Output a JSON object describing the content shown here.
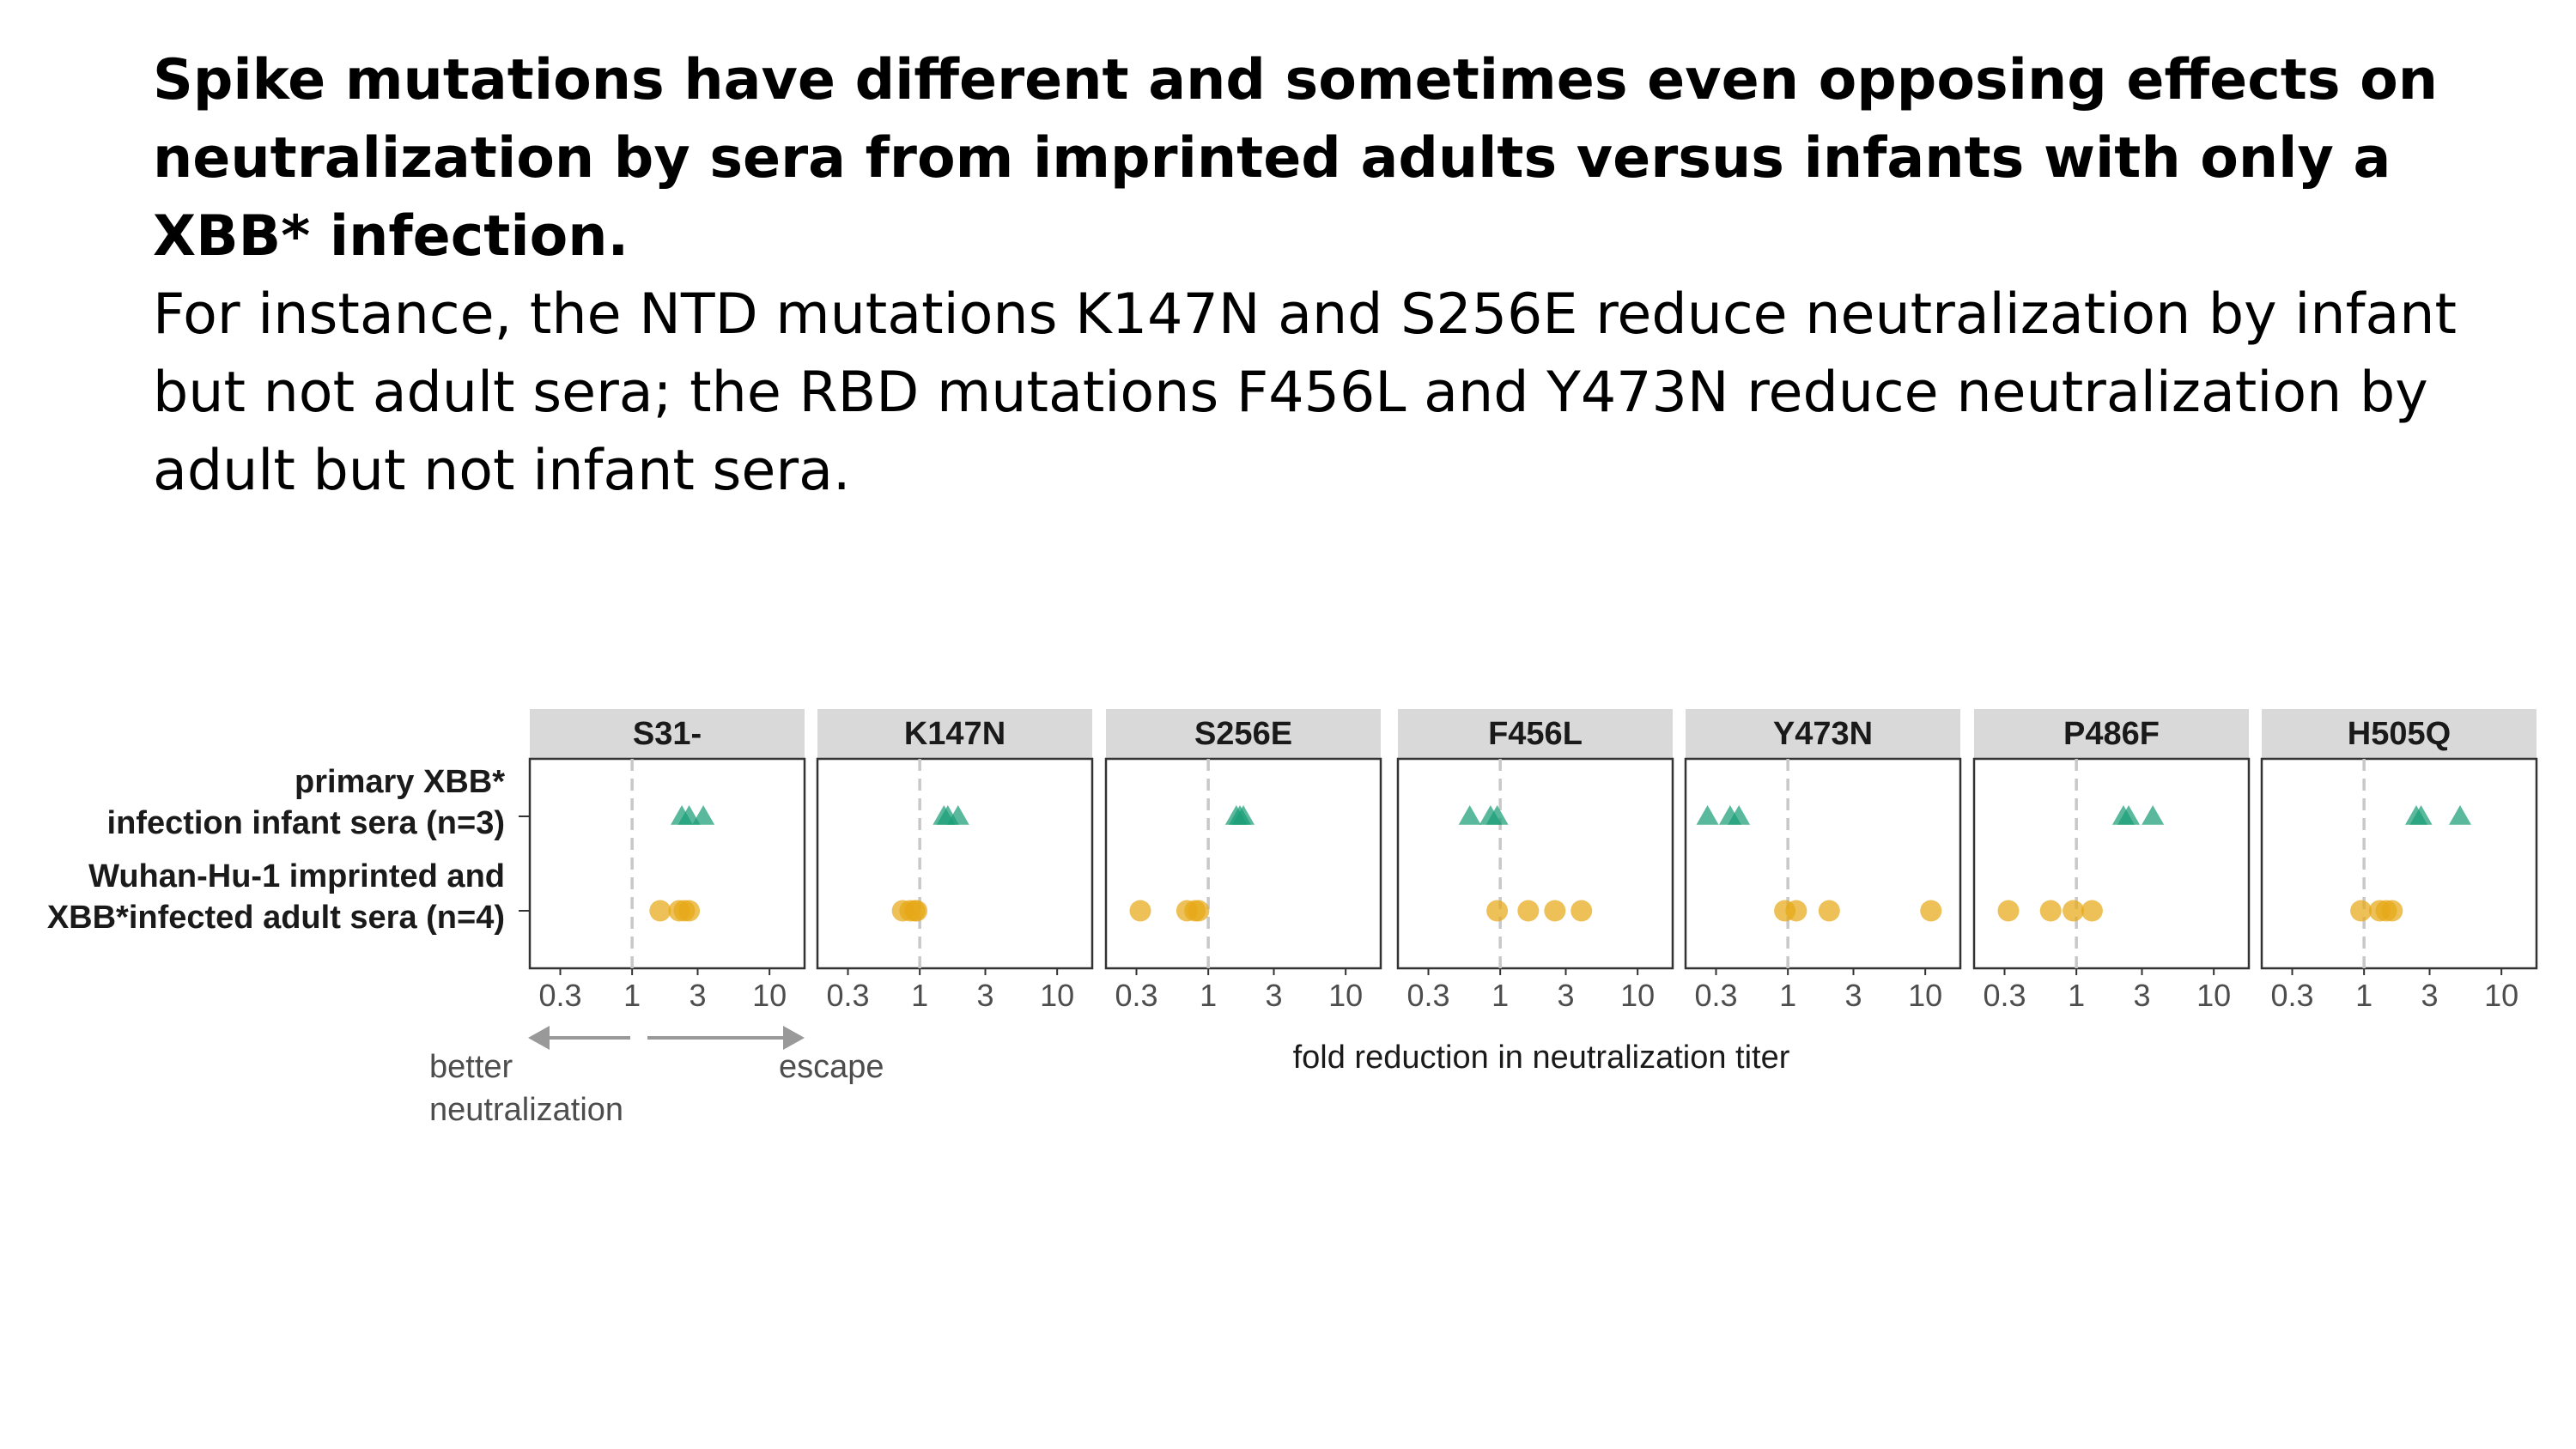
{
  "slide": {
    "headline": "Spike mutations have different and sometimes even opposing effects on neutralization by sera from imprinted adults versus infants with only a XBB* infection.",
    "body": "For instance, the NTD mutations K147N and S256E reduce neutralization by infant but not adult sera; the RBD mutations F456L and Y473N reduce neutralization by adult but not infant sera."
  },
  "annotation": {
    "better_label_line1": "better",
    "better_label_line2": "neutralization",
    "escape_label": "escape"
  },
  "colors": {
    "infant": "#1a9e77",
    "adult": "#e6a817",
    "strip_bg": "#d9d9d9",
    "reference_line": "#c8c8c8",
    "arrow": "#999999"
  },
  "chart_data": {
    "type": "scatter",
    "xlabel": "fold reduction in neutralization titer",
    "x_scale": "log10",
    "xlim": [
      0.18,
      18
    ],
    "x_ticks": [
      0.3,
      1,
      3,
      10
    ],
    "x_tick_labels": [
      "0.3",
      "1",
      "3",
      "10"
    ],
    "reference_x": 1,
    "groups": [
      {
        "id": "infant",
        "label_line1": "primary XBB*",
        "label_line2": "infection infant sera (n=3)",
        "marker": "triangle"
      },
      {
        "id": "adult",
        "label_line1": "Wuhan-Hu-1 imprinted and",
        "label_line2": "XBB*infected adult sera (n=4)",
        "marker": "circle"
      }
    ],
    "panels": [
      {
        "mutation": "S31-",
        "infant": [
          2.3,
          2.6,
          3.3
        ],
        "adult": [
          1.6,
          2.2,
          2.4,
          2.6
        ]
      },
      {
        "mutation": "K147N",
        "infant": [
          1.5,
          1.6,
          1.9
        ],
        "adult": [
          0.75,
          0.85,
          0.92,
          0.95
        ]
      },
      {
        "mutation": "S256E",
        "infant": [
          1.6,
          1.7,
          1.8
        ],
        "adult": [
          0.32,
          0.7,
          0.8,
          0.85
        ]
      },
      {
        "mutation": "F456L",
        "infant": [
          0.6,
          0.85,
          0.95
        ],
        "adult": [
          0.95,
          1.6,
          2.5,
          3.9
        ]
      },
      {
        "mutation": "Y473N",
        "infant": [
          0.26,
          0.38,
          0.44
        ],
        "adult": [
          0.95,
          1.15,
          2.0,
          11.0
        ]
      },
      {
        "mutation": "P486F",
        "infant": [
          2.2,
          2.4,
          3.6
        ],
        "adult": [
          0.32,
          0.65,
          0.95,
          1.3
        ]
      },
      {
        "mutation": "H505Q",
        "infant": [
          2.4,
          2.6,
          5.0
        ],
        "adult": [
          0.95,
          1.3,
          1.45,
          1.6
        ]
      }
    ]
  }
}
